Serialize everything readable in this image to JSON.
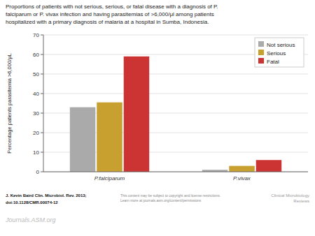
{
  "chart_data": {
    "type": "bar",
    "title": "Proportions of patients with not serious, serious, or fatal disease with a diagnosis of P.\nfalciparum or P. vivax infection and having parasitemias of >6,000/μl among patients\nhospitalized with a primary diagnosis of malaria at a hospital in Sumba, Indonesia.",
    "categories": [
      "P.falciparum",
      "P.vivax"
    ],
    "series": [
      {
        "name": "Not serious",
        "color": "#aaaaaa",
        "values": [
          33,
          1
        ]
      },
      {
        "name": "Serious",
        "color": "#c8a030",
        "values": [
          35.5,
          3
        ]
      },
      {
        "name": "Fatal",
        "color": "#cc3333",
        "values": [
          59,
          6
        ]
      }
    ],
    "y_label": "Percentage patients parasitemia >6,000/μL",
    "ylim": [
      0,
      70
    ],
    "yticks": [
      0,
      10,
      20,
      30,
      40,
      50,
      60,
      70
    ],
    "grid": true,
    "legend": "upper right",
    "annotations": [
      "J. Kevin Baird Clin. Microbiol. Rev. 2013;",
      "doi:10.1128/CMR.00074-12",
      "This content may be subject to copyright and license restrictions.\nLearn more at journals.asm.org/content/permissions",
      "Clinical Microbiology\nReviews",
      "Journals.ASM.org"
    ]
  }
}
